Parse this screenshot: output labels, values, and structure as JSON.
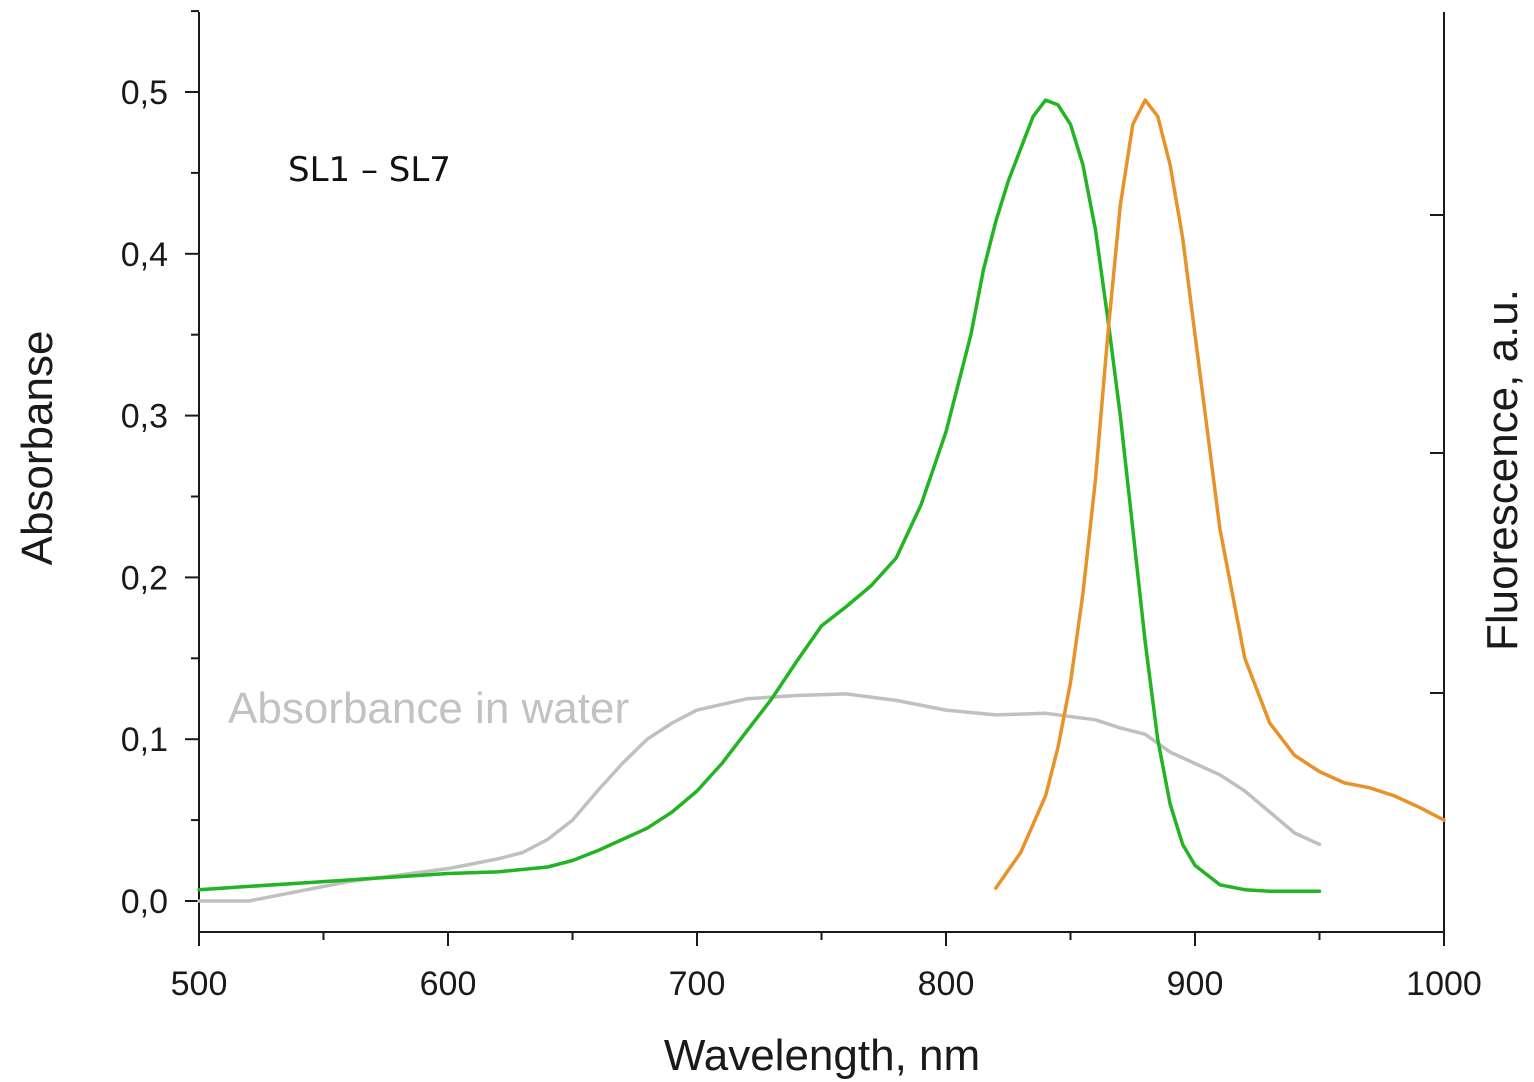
{
  "chart_data": {
    "type": "line",
    "xlabel": "Wavelength, nm",
    "ylabel": "Absorbanse",
    "y2label": "Fluorescence, a.u.",
    "xlim": [
      500,
      1000
    ],
    "ylim": [
      -0.02,
      0.55
    ],
    "x_ticks": [
      500,
      600,
      700,
      800,
      900,
      1000
    ],
    "x_tick_labels": [
      "500",
      "600",
      "700",
      "800",
      "900",
      "1000"
    ],
    "y_ticks": [
      0.0,
      0.1,
      0.2,
      0.3,
      0.4,
      0.5
    ],
    "y_tick_labels": [
      "0,0",
      "0,1",
      "0,2",
      "0,3",
      "0,4",
      "0,5"
    ],
    "grid": false,
    "annotations": [
      "SL1 – SL7",
      "Absorbance in water"
    ],
    "series": [
      {
        "label": "Absorbance in water",
        "color": "#c0c0c0",
        "axis": "left",
        "x": [
          500,
          520,
          540,
          560,
          580,
          600,
          620,
          630,
          640,
          650,
          660,
          670,
          680,
          690,
          700,
          720,
          740,
          760,
          780,
          800,
          820,
          840,
          860,
          870,
          880,
          890,
          900,
          910,
          920,
          930,
          940,
          950
        ],
        "y": [
          0.0,
          0.0,
          0.006,
          0.012,
          0.016,
          0.02,
          0.026,
          0.03,
          0.038,
          0.05,
          0.068,
          0.085,
          0.1,
          0.11,
          0.118,
          0.125,
          0.127,
          0.128,
          0.124,
          0.118,
          0.115,
          0.116,
          0.112,
          0.107,
          0.103,
          0.092,
          0.085,
          0.078,
          0.068,
          0.055,
          0.042,
          0.035
        ]
      },
      {
        "label": "SL1 – SL7 absorbance",
        "color": "#22b422",
        "axis": "left",
        "x": [
          500,
          520,
          540,
          560,
          580,
          600,
          620,
          640,
          650,
          660,
          670,
          680,
          690,
          700,
          710,
          720,
          730,
          740,
          750,
          760,
          770,
          780,
          790,
          800,
          810,
          815,
          820,
          825,
          830,
          835,
          840,
          845,
          850,
          855,
          860,
          865,
          870,
          875,
          880,
          885,
          890,
          895,
          900,
          910,
          920,
          930,
          940,
          950
        ],
        "y": [
          0.007,
          0.009,
          0.011,
          0.013,
          0.015,
          0.017,
          0.018,
          0.021,
          0.025,
          0.031,
          0.038,
          0.045,
          0.055,
          0.068,
          0.085,
          0.105,
          0.125,
          0.148,
          0.17,
          0.182,
          0.195,
          0.212,
          0.245,
          0.29,
          0.35,
          0.39,
          0.42,
          0.445,
          0.465,
          0.485,
          0.495,
          0.492,
          0.48,
          0.455,
          0.415,
          0.36,
          0.3,
          0.23,
          0.16,
          0.1,
          0.06,
          0.035,
          0.022,
          0.01,
          0.007,
          0.006,
          0.006,
          0.006
        ]
      },
      {
        "label": "Fluorescence",
        "color": "#e8922a",
        "axis": "right",
        "x": [
          820,
          830,
          840,
          845,
          850,
          855,
          860,
          865,
          870,
          875,
          880,
          885,
          890,
          895,
          900,
          905,
          910,
          920,
          930,
          940,
          950,
          960,
          970,
          980,
          990,
          1000
        ],
        "y": [
          0.008,
          0.03,
          0.065,
          0.095,
          0.135,
          0.19,
          0.26,
          0.35,
          0.43,
          0.48,
          0.495,
          0.485,
          0.455,
          0.41,
          0.35,
          0.29,
          0.23,
          0.15,
          0.11,
          0.09,
          0.08,
          0.073,
          0.07,
          0.065,
          0.058,
          0.05
        ]
      }
    ]
  }
}
